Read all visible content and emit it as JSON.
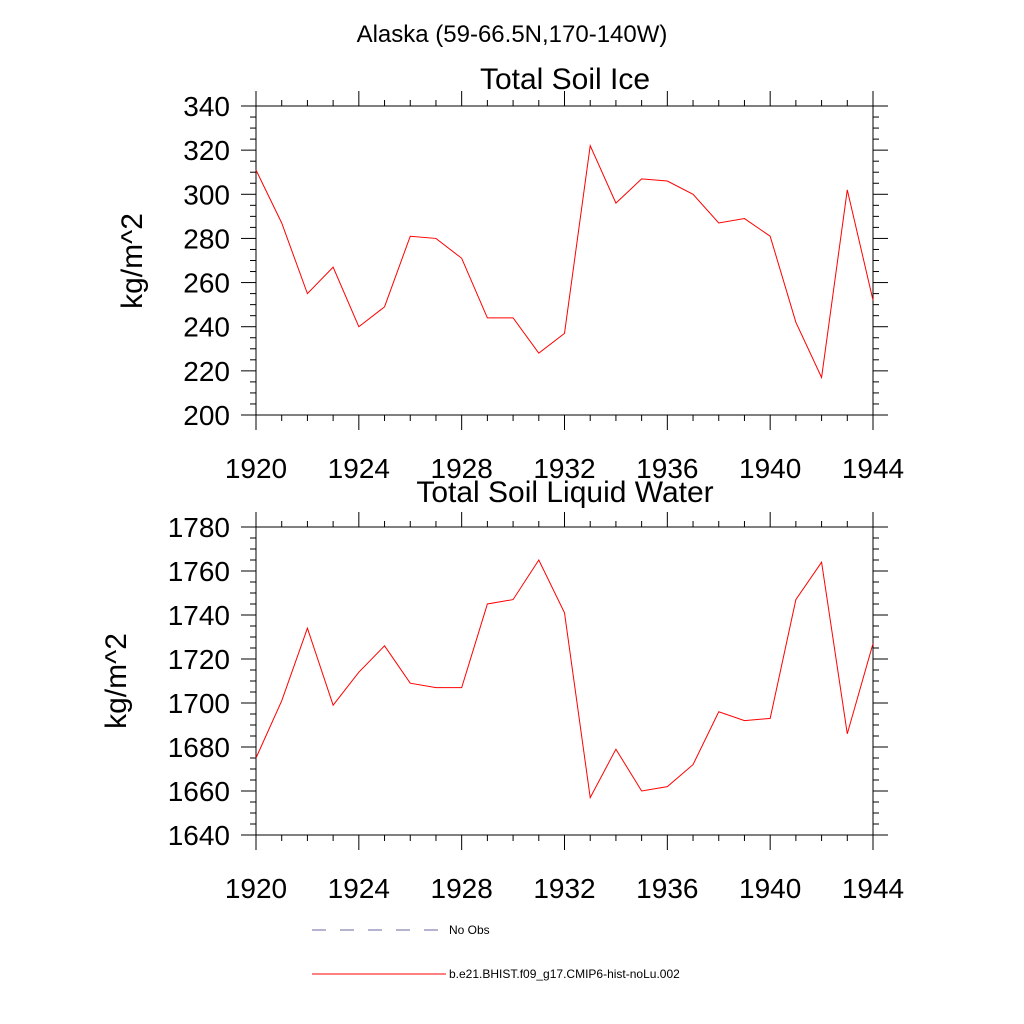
{
  "suptitle": "Alaska (59-66.5N,170-140W)",
  "colors": {
    "model": "#ff0000",
    "obs": "#6a6aa0",
    "axis": "#000000"
  },
  "legend": [
    {
      "label": "No Obs",
      "style": "dashed",
      "color": "#6a6aa0"
    },
    {
      "label": "b.e21.BHIST.f09_g17.CMIP6-hist-noLu.002",
      "style": "solid",
      "color": "#ff0000"
    }
  ],
  "chart_data": [
    {
      "type": "line",
      "title": "Total Soil Ice",
      "xlabel": "",
      "ylabel": "kg/m^2",
      "xlim": [
        1920,
        1944
      ],
      "ylim": [
        200,
        340
      ],
      "xticks": [
        1920,
        1924,
        1928,
        1932,
        1936,
        1940,
        1944
      ],
      "yticks": [
        200,
        220,
        240,
        260,
        280,
        300,
        320,
        340
      ],
      "grid": false,
      "x": [
        1920,
        1921,
        1922,
        1923,
        1924,
        1925,
        1926,
        1927,
        1928,
        1929,
        1930,
        1931,
        1932,
        1933,
        1934,
        1935,
        1936,
        1937,
        1938,
        1939,
        1940,
        1941,
        1942,
        1943,
        1944
      ],
      "series": [
        {
          "name": "b.e21.BHIST.f09_g17.CMIP6-hist-noLu.002",
          "values": [
            311,
            287,
            255,
            267,
            240,
            249,
            281,
            280,
            271,
            244,
            244,
            228,
            237,
            322,
            296,
            307,
            306,
            300,
            287,
            289,
            281,
            242,
            217,
            302,
            252
          ]
        }
      ]
    },
    {
      "type": "line",
      "title": "Total Soil Liquid Water",
      "xlabel": "",
      "ylabel": "kg/m^2",
      "xlim": [
        1920,
        1944
      ],
      "ylim": [
        1640,
        1780
      ],
      "xticks": [
        1920,
        1924,
        1928,
        1932,
        1936,
        1940,
        1944
      ],
      "yticks": [
        1640,
        1660,
        1680,
        1700,
        1720,
        1740,
        1760,
        1780
      ],
      "grid": false,
      "x": [
        1920,
        1921,
        1922,
        1923,
        1924,
        1925,
        1926,
        1927,
        1928,
        1929,
        1930,
        1931,
        1932,
        1933,
        1934,
        1935,
        1936,
        1937,
        1938,
        1939,
        1940,
        1941,
        1942,
        1943,
        1944
      ],
      "series": [
        {
          "name": "b.e21.BHIST.f09_g17.CMIP6-hist-noLu.002",
          "values": [
            1675,
            1701,
            1734,
            1699,
            1714,
            1726,
            1709,
            1707,
            1707,
            1745,
            1747,
            1765,
            1741,
            1657,
            1679,
            1660,
            1662,
            1672,
            1696,
            1692,
            1693,
            1747,
            1764,
            1686,
            1727
          ]
        }
      ]
    }
  ]
}
